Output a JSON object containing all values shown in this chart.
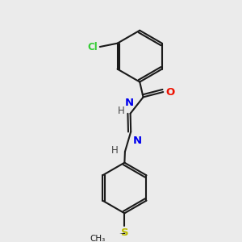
{
  "background_color": "#ebebeb",
  "bond_color": "#1a1a1a",
  "cl_color": "#33cc33",
  "o_color": "#ee1100",
  "n_color": "#0000ee",
  "s_color": "#bbbb00",
  "h_color": "#444444",
  "figsize": [
    3.0,
    3.0
  ],
  "dpi": 100,
  "xlim": [
    0,
    10
  ],
  "ylim": [
    0,
    10
  ]
}
